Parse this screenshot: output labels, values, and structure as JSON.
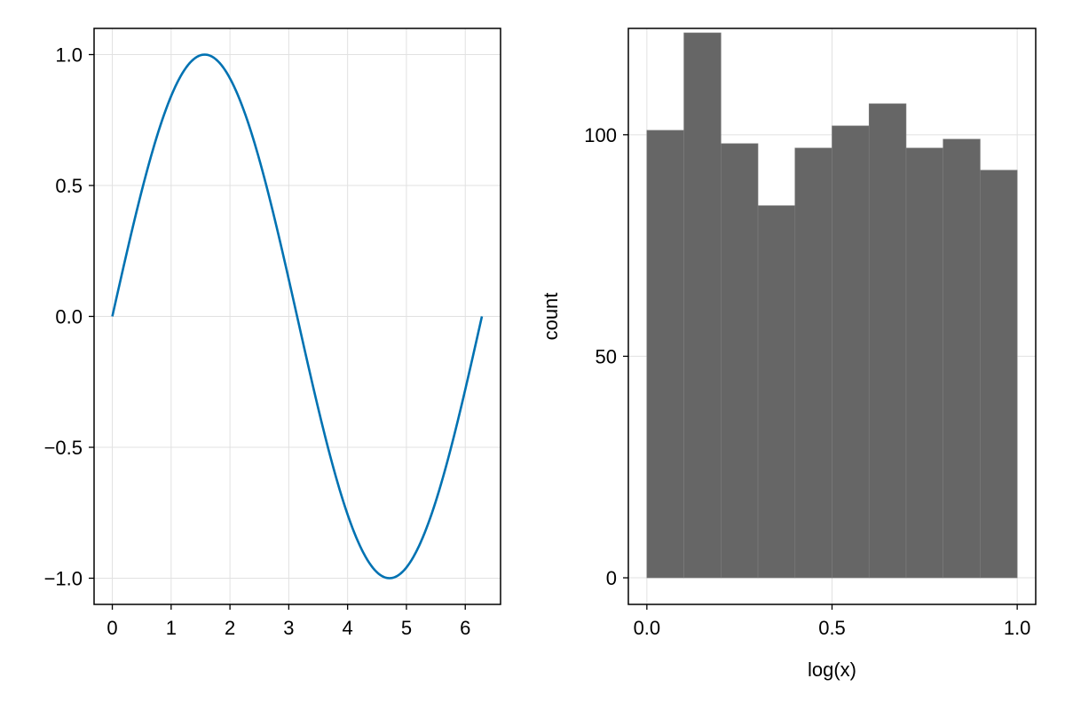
{
  "chart_data": [
    {
      "type": "line",
      "title": "",
      "xlabel": "",
      "ylabel": "",
      "xlim": [
        -0.31,
        6.6
      ],
      "ylim": [
        -1.1,
        1.1
      ],
      "grid": true,
      "xticks": [
        0,
        1,
        2,
        3,
        4,
        5,
        6
      ],
      "xtick_labels": [
        "0",
        "1",
        "2",
        "3",
        "4",
        "5",
        "6"
      ],
      "yticks": [
        -1.0,
        -0.5,
        0.0,
        0.5,
        1.0
      ],
      "ytick_labels": [
        "−1.0",
        "−0.5",
        "0.0",
        "0.5",
        "1.0"
      ],
      "series": [
        {
          "function": "sin(x)",
          "x": [
            0,
            0.2856,
            0.5712,
            0.8568,
            1.1424,
            1.428,
            1.7136,
            1.9992,
            2.2848,
            2.5704,
            2.856,
            3.1416,
            3.4272,
            3.7128,
            3.9984,
            4.284,
            4.5696,
            4.8552,
            5.1408,
            5.4264,
            5.712,
            5.9976,
            6.2832
          ],
          "y": [
            0,
            0.2817,
            0.5406,
            0.7557,
            0.9096,
            0.9898,
            0.9898,
            0.9096,
            0.7557,
            0.5406,
            0.2817,
            0,
            -0.2817,
            -0.5406,
            -0.7557,
            -0.9096,
            -0.9898,
            -0.9898,
            -0.9096,
            -0.7557,
            -0.5406,
            -0.2817,
            0
          ],
          "color": "#0072b2"
        }
      ]
    },
    {
      "type": "bar",
      "title": "",
      "xlabel": "log(x)",
      "ylabel": "count",
      "xlim": [
        -0.05,
        1.05
      ],
      "ylim": [
        -6,
        124
      ],
      "grid": true,
      "xticks": [
        0.0,
        0.5,
        1.0
      ],
      "xtick_labels": [
        "0.0",
        "0.5",
        "1.0"
      ],
      "yticks": [
        0,
        50,
        100
      ],
      "ytick_labels": [
        "0",
        "50",
        "100"
      ],
      "bin_edges": [
        0.0,
        0.1,
        0.2,
        0.3,
        0.4,
        0.5,
        0.6,
        0.7,
        0.8,
        0.9,
        1.0
      ],
      "values": [
        101,
        123,
        98,
        84,
        97,
        102,
        107,
        97,
        99,
        92
      ],
      "color": "#666666"
    }
  ]
}
